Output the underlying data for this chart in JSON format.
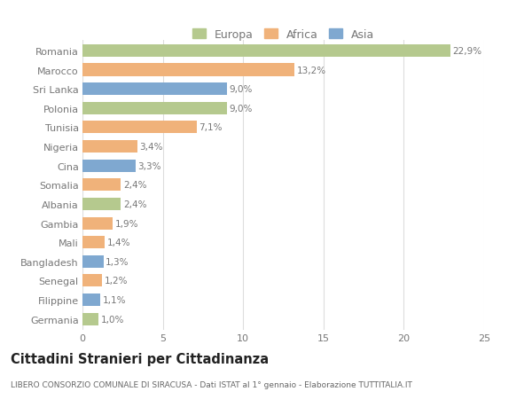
{
  "categories": [
    "Romania",
    "Marocco",
    "Sri Lanka",
    "Polonia",
    "Tunisia",
    "Nigeria",
    "Cina",
    "Somalia",
    "Albania",
    "Gambia",
    "Mali",
    "Bangladesh",
    "Senegal",
    "Filippine",
    "Germania"
  ],
  "values": [
    22.9,
    13.2,
    9.0,
    9.0,
    7.1,
    3.4,
    3.3,
    2.4,
    2.4,
    1.9,
    1.4,
    1.3,
    1.2,
    1.1,
    1.0
  ],
  "labels": [
    "22,9%",
    "13,2%",
    "9,0%",
    "9,0%",
    "7,1%",
    "3,4%",
    "3,3%",
    "2,4%",
    "2,4%",
    "1,9%",
    "1,4%",
    "1,3%",
    "1,2%",
    "1,1%",
    "1,0%"
  ],
  "colors": [
    "#b5c98e",
    "#f0b27a",
    "#7fa8d0",
    "#b5c98e",
    "#f0b27a",
    "#f0b27a",
    "#7fa8d0",
    "#f0b27a",
    "#b5c98e",
    "#f0b27a",
    "#f0b27a",
    "#7fa8d0",
    "#f0b27a",
    "#7fa8d0",
    "#b5c98e"
  ],
  "legend_labels": [
    "Europa",
    "Africa",
    "Asia"
  ],
  "legend_colors": [
    "#b5c98e",
    "#f0b27a",
    "#7fa8d0"
  ],
  "title": "Cittadini Stranieri per Cittadinanza",
  "subtitle": "LIBERO CONSORZIO COMUNALE DI SIRACUSA - Dati ISTAT al 1° gennaio - Elaborazione TUTTITALIA.IT",
  "xlim": [
    0,
    25
  ],
  "xticks": [
    0,
    5,
    10,
    15,
    20,
    25
  ],
  "background_color": "#ffffff",
  "grid_color": "#dddddd",
  "bar_height": 0.65,
  "text_color": "#777777",
  "label_fontsize": 7.5,
  "ytick_fontsize": 8.0,
  "xtick_fontsize": 8.0,
  "legend_fontsize": 9.0,
  "title_fontsize": 10.5,
  "subtitle_fontsize": 6.5,
  "title_color": "#222222",
  "subtitle_color": "#666666"
}
